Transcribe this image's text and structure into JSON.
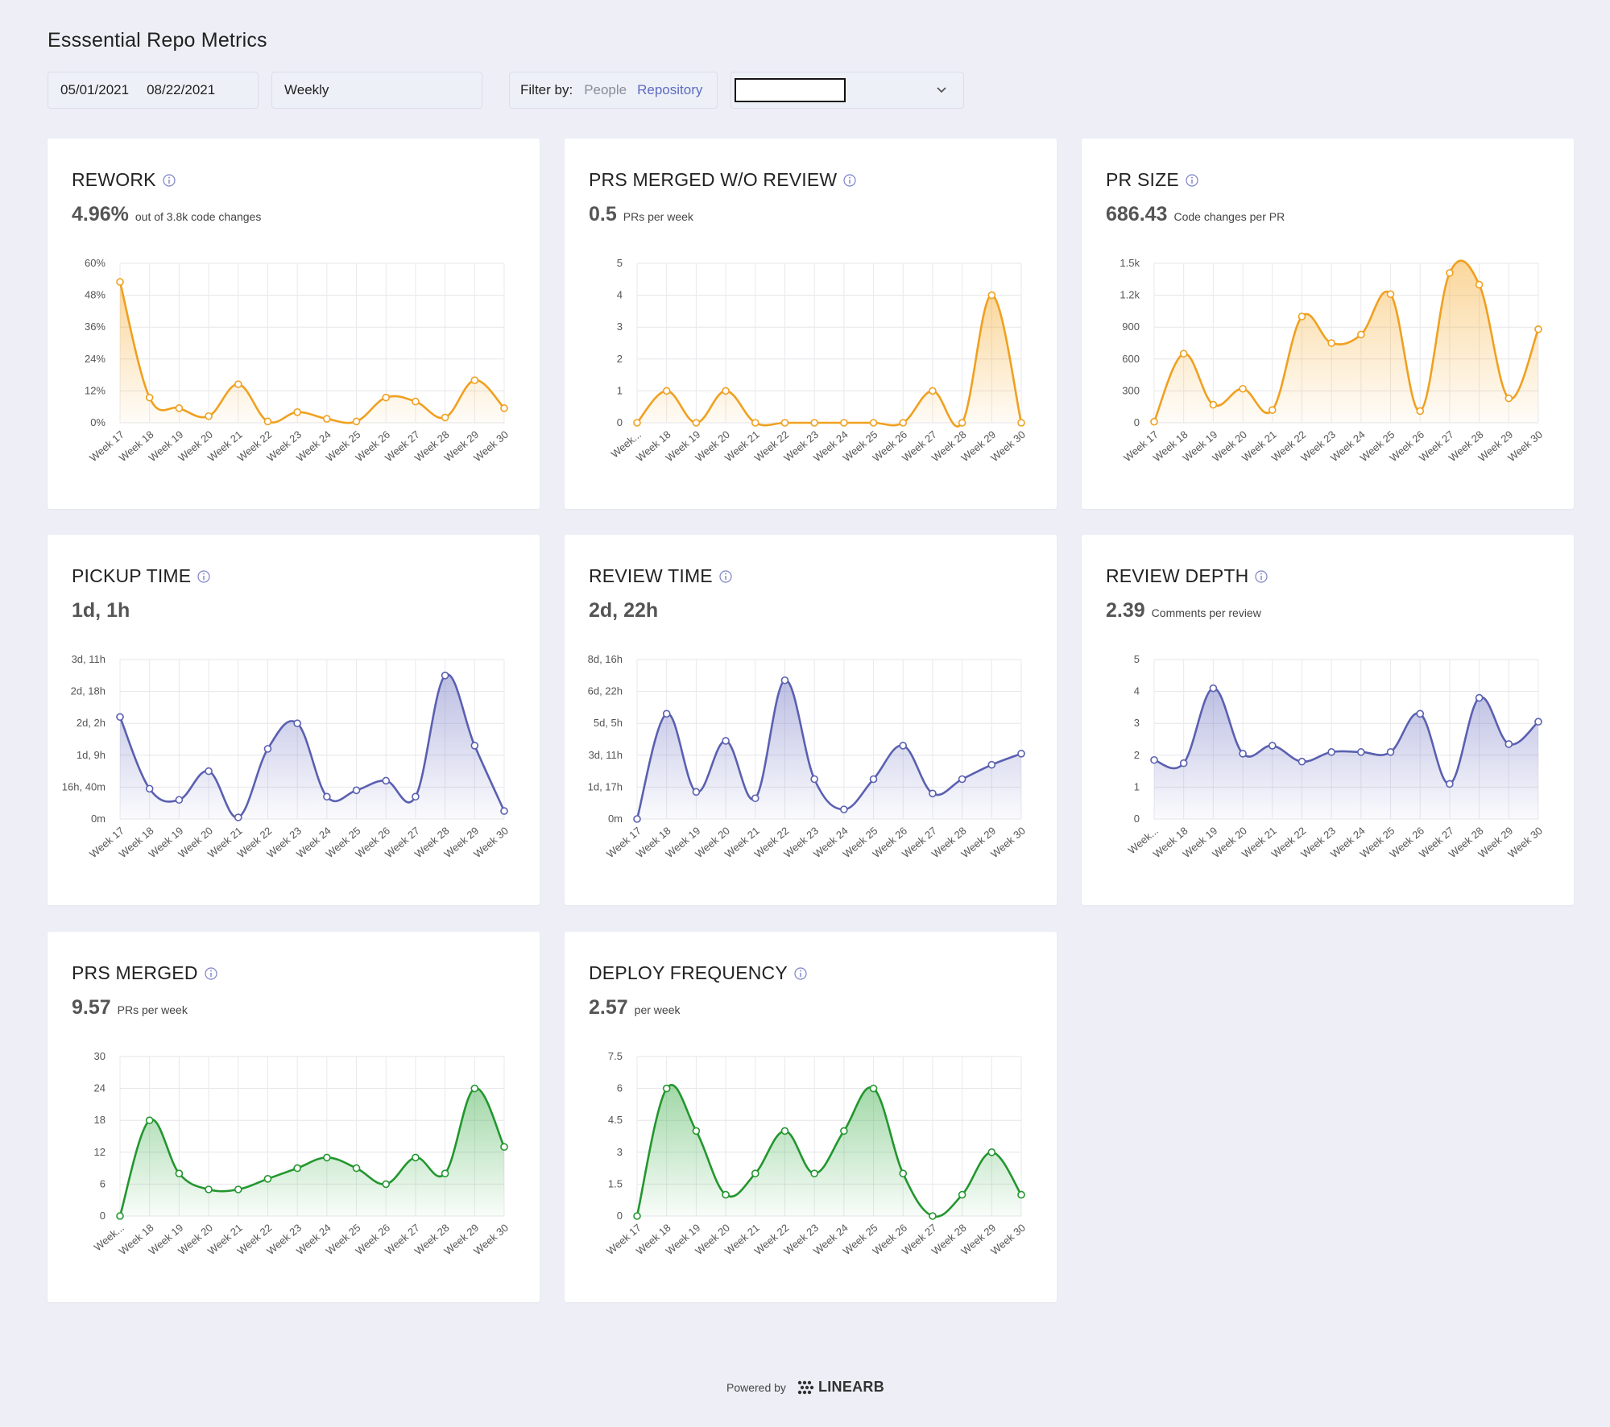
{
  "page": {
    "title": "Esssential Repo Metrics"
  },
  "toolbar": {
    "date_from": "05/01/2021",
    "date_to": "08/22/2021",
    "frequency": "Weekly",
    "filter_label": "Filter by:",
    "filter_people": "People",
    "filter_repository": "Repository"
  },
  "cards": [
    {
      "title": "REWORK",
      "value": "4.96%",
      "unit": "out of 3.8k code changes"
    },
    {
      "title": "PRS MERGED W/O REVIEW",
      "value": "0.5",
      "unit": "PRs per week"
    },
    {
      "title": "PR SIZE",
      "value": "686.43",
      "unit": "Code changes per PR"
    },
    {
      "title": "PICKUP TIME",
      "value": "1d, 1h",
      "unit": ""
    },
    {
      "title": "REVIEW TIME",
      "value": "2d, 22h",
      "unit": ""
    },
    {
      "title": "REVIEW DEPTH",
      "value": "2.39",
      "unit": "Comments per review"
    },
    {
      "title": "PRS MERGED",
      "value": "9.57",
      "unit": "PRs per week"
    },
    {
      "title": "DEPLOY FREQUENCY",
      "value": "2.57",
      "unit": "per week"
    }
  ],
  "footer": {
    "powered_by": "Powered by",
    "brand": "LINEARB"
  },
  "colors": {
    "orange": "#f5a623",
    "blue": "#5c63b5",
    "green": "#2e9e3a"
  },
  "chart_data": [
    {
      "type": "area",
      "title": "REWORK",
      "color": "orange",
      "x": [
        "Week 17",
        "Week 18",
        "Week 19",
        "Week 20",
        "Week 21",
        "Week 22",
        "Week 23",
        "Week 24",
        "Week 25",
        "Week 26",
        "Week 27",
        "Week 28",
        "Week 29",
        "Week 30"
      ],
      "ticks": [
        "0%",
        "12%",
        "24%",
        "36%",
        "48%",
        "60%"
      ],
      "ylim": [
        0,
        60
      ],
      "values": [
        53,
        9.5,
        5.5,
        2.5,
        14.5,
        0.5,
        4,
        1.5,
        0.5,
        9.5,
        8,
        2,
        16,
        5.5
      ]
    },
    {
      "type": "area",
      "title": "PRS MERGED W/O REVIEW",
      "color": "orange",
      "x": [
        "Week...",
        "Week 18",
        "Week 19",
        "Week 20",
        "Week 21",
        "Week 22",
        "Week 23",
        "Week 24",
        "Week 25",
        "Week 26",
        "Week 27",
        "Week 28",
        "Week 29",
        "Week 30"
      ],
      "ticks": [
        "0",
        "1",
        "2",
        "3",
        "4",
        "5"
      ],
      "ylim": [
        0,
        5
      ],
      "values": [
        0,
        1,
        0,
        1,
        0,
        0,
        0,
        0,
        0,
        0,
        1,
        0,
        4,
        0
      ]
    },
    {
      "type": "area",
      "title": "PR SIZE",
      "color": "orange",
      "x": [
        "Week 17",
        "Week 18",
        "Week 19",
        "Week 20",
        "Week 21",
        "Week 22",
        "Week 23",
        "Week 24",
        "Week 25",
        "Week 26",
        "Week 27",
        "Week 28",
        "Week 29",
        "Week 30"
      ],
      "ticks": [
        "0",
        "300",
        "600",
        "900",
        "1.2k",
        "1.5k"
      ],
      "ylim": [
        0,
        1500
      ],
      "values": [
        10,
        650,
        170,
        320,
        120,
        1000,
        750,
        830,
        1210,
        110,
        1410,
        1300,
        230,
        880
      ]
    },
    {
      "type": "area",
      "title": "PICKUP TIME",
      "color": "blue",
      "x": [
        "Week 17",
        "Week 18",
        "Week 19",
        "Week 20",
        "Week 21",
        "Week 22",
        "Week 23",
        "Week 24",
        "Week 25",
        "Week 26",
        "Week 27",
        "Week 28",
        "Week 29",
        "Week 30"
      ],
      "ticks": [
        "0m",
        "16h, 40m",
        "1d, 9h",
        "2d, 2h",
        "2d, 18h",
        "3d, 11h"
      ],
      "ylim": [
        0,
        5
      ],
      "values": [
        3.2,
        0.95,
        0.6,
        1.5,
        0.05,
        2.2,
        3.0,
        0.7,
        0.9,
        1.2,
        0.7,
        4.5,
        2.3,
        0.25
      ]
    },
    {
      "type": "area",
      "title": "REVIEW TIME",
      "color": "blue",
      "x": [
        "Week 17",
        "Week 18",
        "Week 19",
        "Week 20",
        "Week 21",
        "Week 22",
        "Week 23",
        "Week 24",
        "Week 25",
        "Week 26",
        "Week 27",
        "Week 28",
        "Week 29",
        "Week 30"
      ],
      "ticks": [
        "0m",
        "1d, 17h",
        "3d, 11h",
        "5d, 5h",
        "6d, 22h",
        "8d, 16h"
      ],
      "ylim": [
        0,
        5
      ],
      "values": [
        0,
        3.3,
        0.85,
        2.45,
        0.65,
        4.35,
        1.25,
        0.3,
        1.25,
        2.3,
        0.8,
        1.25,
        1.7,
        2.05
      ]
    },
    {
      "type": "area",
      "title": "REVIEW DEPTH",
      "color": "blue",
      "x": [
        "Week...",
        "Week 18",
        "Week 19",
        "Week 20",
        "Week 21",
        "Week 22",
        "Week 23",
        "Week 24",
        "Week 25",
        "Week 26",
        "Week 27",
        "Week 28",
        "Week 29",
        "Week 30"
      ],
      "ticks": [
        "0",
        "1",
        "2",
        "3",
        "4",
        "5"
      ],
      "ylim": [
        0,
        5
      ],
      "values": [
        1.85,
        1.75,
        4.1,
        2.05,
        2.3,
        1.8,
        2.1,
        2.1,
        2.1,
        3.3,
        1.1,
        3.8,
        2.35,
        3.05
      ]
    },
    {
      "type": "area",
      "title": "PRS MERGED",
      "color": "green",
      "x": [
        "Week...",
        "Week 18",
        "Week 19",
        "Week 20",
        "Week 21",
        "Week 22",
        "Week 23",
        "Week 24",
        "Week 25",
        "Week 26",
        "Week 27",
        "Week 28",
        "Week 29",
        "Week 30"
      ],
      "ticks": [
        "0",
        "6",
        "12",
        "18",
        "24",
        "30"
      ],
      "ylim": [
        0,
        30
      ],
      "values": [
        0,
        18,
        8,
        5,
        5,
        7,
        9,
        11,
        9,
        6,
        11,
        8,
        24,
        13
      ]
    },
    {
      "type": "area",
      "title": "DEPLOY FREQUENCY",
      "color": "green",
      "x": [
        "Week 17",
        "Week 18",
        "Week 19",
        "Week 20",
        "Week 21",
        "Week 22",
        "Week 23",
        "Week 24",
        "Week 25",
        "Week 26",
        "Week 27",
        "Week 28",
        "Week 29",
        "Week 30"
      ],
      "ticks": [
        "0",
        "1.5",
        "3",
        "4.5",
        "6",
        "7.5"
      ],
      "ylim": [
        0,
        7.5
      ],
      "values": [
        0,
        6,
        4,
        1,
        2,
        4,
        2,
        4,
        6,
        2,
        0,
        1,
        3,
        1
      ]
    }
  ]
}
